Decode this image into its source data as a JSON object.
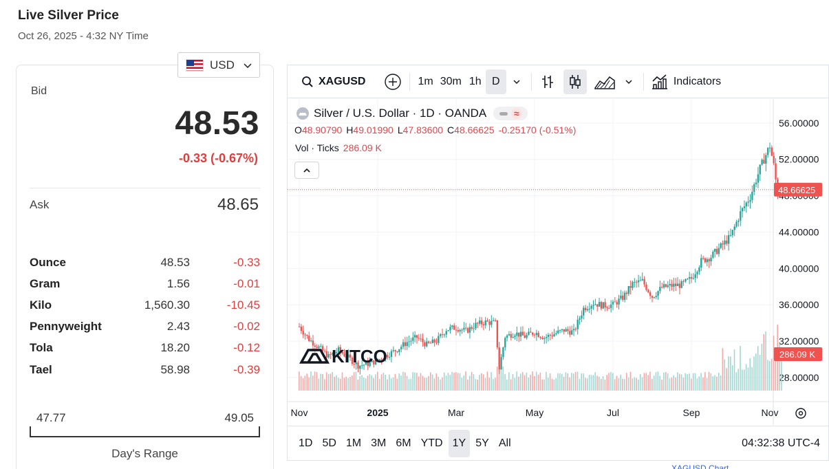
{
  "page": {
    "title": "Live Silver Price",
    "timestamp": "Oct 26, 2025 - 4:32 NY Time"
  },
  "currency": {
    "selected": "USD",
    "icon": "us-flag-icon"
  },
  "quote": {
    "bid_label": "Bid",
    "bid": "48.53",
    "change": "-0.33 (-0.67%)",
    "ask_label": "Ask",
    "ask": "48.65",
    "change_color": "#e23d3d"
  },
  "units": [
    {
      "name": "Ounce",
      "price": "48.53",
      "change": "-0.33"
    },
    {
      "name": "Gram",
      "price": "1.56",
      "change": "-0.01"
    },
    {
      "name": "Kilo",
      "price": "1,560.30",
      "change": "-10.45"
    },
    {
      "name": "Pennyweight",
      "price": "2.43",
      "change": "-0.02"
    },
    {
      "name": "Tola",
      "price": "18.20",
      "change": "-0.12"
    },
    {
      "name": "Tael",
      "price": "58.98",
      "change": "-0.39"
    }
  ],
  "day_range": {
    "low": "47.77",
    "high": "49.05",
    "label": "Day's Range"
  },
  "chart_widget": {
    "symbol": "XAGUSD",
    "intervals": [
      "1m",
      "30m",
      "1h",
      "D"
    ],
    "active_interval": "D",
    "indicators_label": "Indicators",
    "legend": {
      "title": "Silver / U.S. Dollar · 1D · OANDA",
      "o_key": "O",
      "o": "48.90790",
      "h_key": "H",
      "h": "49.01990",
      "l_key": "L",
      "l": "47.83600",
      "c_key": "C",
      "c": "48.66625",
      "change": "-0.25170 (-0.51%)",
      "vol_label": "Vol · Ticks",
      "vol": "286.09 K"
    },
    "ranges": [
      "1D",
      "5D",
      "1M",
      "3M",
      "6M",
      "YTD",
      "1Y",
      "5Y",
      "All"
    ],
    "active_range": "1Y",
    "clock": "04:32:38 UTC-4",
    "up_color": "#26a69a",
    "down_color": "#ef5350"
  },
  "chart_data": {
    "type": "candlestick",
    "symbol": "XAGUSD",
    "y_ticks": [
      "56.00000",
      "52.00000",
      "48.00000",
      "44.00000",
      "40.00000",
      "36.00000",
      "32.00000",
      "28.00000"
    ],
    "ylim": [
      25.5,
      57.5
    ],
    "x_tick_labels": [
      "Nov",
      "2025",
      "Mar",
      "May",
      "Jul",
      "Sep",
      "Nov"
    ],
    "x_tick_months": [
      0,
      2,
      4,
      6,
      8,
      10,
      12
    ],
    "last_price_label": "48.66625",
    "last_volume_label": "286.09 K",
    "last_price": 48.66625,
    "weekly_close": [
      {
        "m": 0.0,
        "v": 33.6
      },
      {
        "m": 0.25,
        "v": 32.2
      },
      {
        "m": 0.5,
        "v": 31.3
      },
      {
        "m": 0.75,
        "v": 30.3
      },
      {
        "m": 1.0,
        "v": 31.0
      },
      {
        "m": 1.25,
        "v": 30.2
      },
      {
        "m": 1.5,
        "v": 29.3
      },
      {
        "m": 1.75,
        "v": 29.5
      },
      {
        "m": 2.0,
        "v": 29.9
      },
      {
        "m": 2.25,
        "v": 30.5
      },
      {
        "m": 2.5,
        "v": 31.1
      },
      {
        "m": 2.75,
        "v": 31.9
      },
      {
        "m": 3.0,
        "v": 32.4
      },
      {
        "m": 3.25,
        "v": 31.6
      },
      {
        "m": 3.5,
        "v": 32.0
      },
      {
        "m": 3.75,
        "v": 33.3
      },
      {
        "m": 4.0,
        "v": 33.5
      },
      {
        "m": 4.25,
        "v": 33.1
      },
      {
        "m": 4.5,
        "v": 33.8
      },
      {
        "m": 4.75,
        "v": 34.1
      },
      {
        "m": 5.0,
        "v": 34.0
      },
      {
        "m": 5.1,
        "v": 29.0
      },
      {
        "m": 5.25,
        "v": 32.5
      },
      {
        "m": 5.5,
        "v": 32.9
      },
      {
        "m": 5.75,
        "v": 32.5
      },
      {
        "m": 6.0,
        "v": 33.0
      },
      {
        "m": 6.25,
        "v": 32.4
      },
      {
        "m": 6.5,
        "v": 32.8
      },
      {
        "m": 6.75,
        "v": 33.2
      },
      {
        "m": 7.0,
        "v": 33.0
      },
      {
        "m": 7.25,
        "v": 35.6
      },
      {
        "m": 7.5,
        "v": 36.2
      },
      {
        "m": 7.75,
        "v": 35.9
      },
      {
        "m": 8.0,
        "v": 36.0
      },
      {
        "m": 8.25,
        "v": 36.8
      },
      {
        "m": 8.5,
        "v": 38.3
      },
      {
        "m": 8.75,
        "v": 38.6
      },
      {
        "m": 9.0,
        "v": 36.9
      },
      {
        "m": 9.25,
        "v": 37.9
      },
      {
        "m": 9.5,
        "v": 38.1
      },
      {
        "m": 9.75,
        "v": 38.2
      },
      {
        "m": 10.0,
        "v": 38.9
      },
      {
        "m": 10.25,
        "v": 40.8
      },
      {
        "m": 10.5,
        "v": 41.3
      },
      {
        "m": 10.75,
        "v": 42.4
      },
      {
        "m": 11.0,
        "v": 43.5
      },
      {
        "m": 11.25,
        "v": 46.1
      },
      {
        "m": 11.5,
        "v": 47.9
      },
      {
        "m": 11.75,
        "v": 51.0
      },
      {
        "m": 12.0,
        "v": 53.5
      },
      {
        "m": 12.1,
        "v": 51.3
      },
      {
        "m": 12.2,
        "v": 48.2
      },
      {
        "m": 12.3,
        "v": 48.7
      }
    ]
  }
}
